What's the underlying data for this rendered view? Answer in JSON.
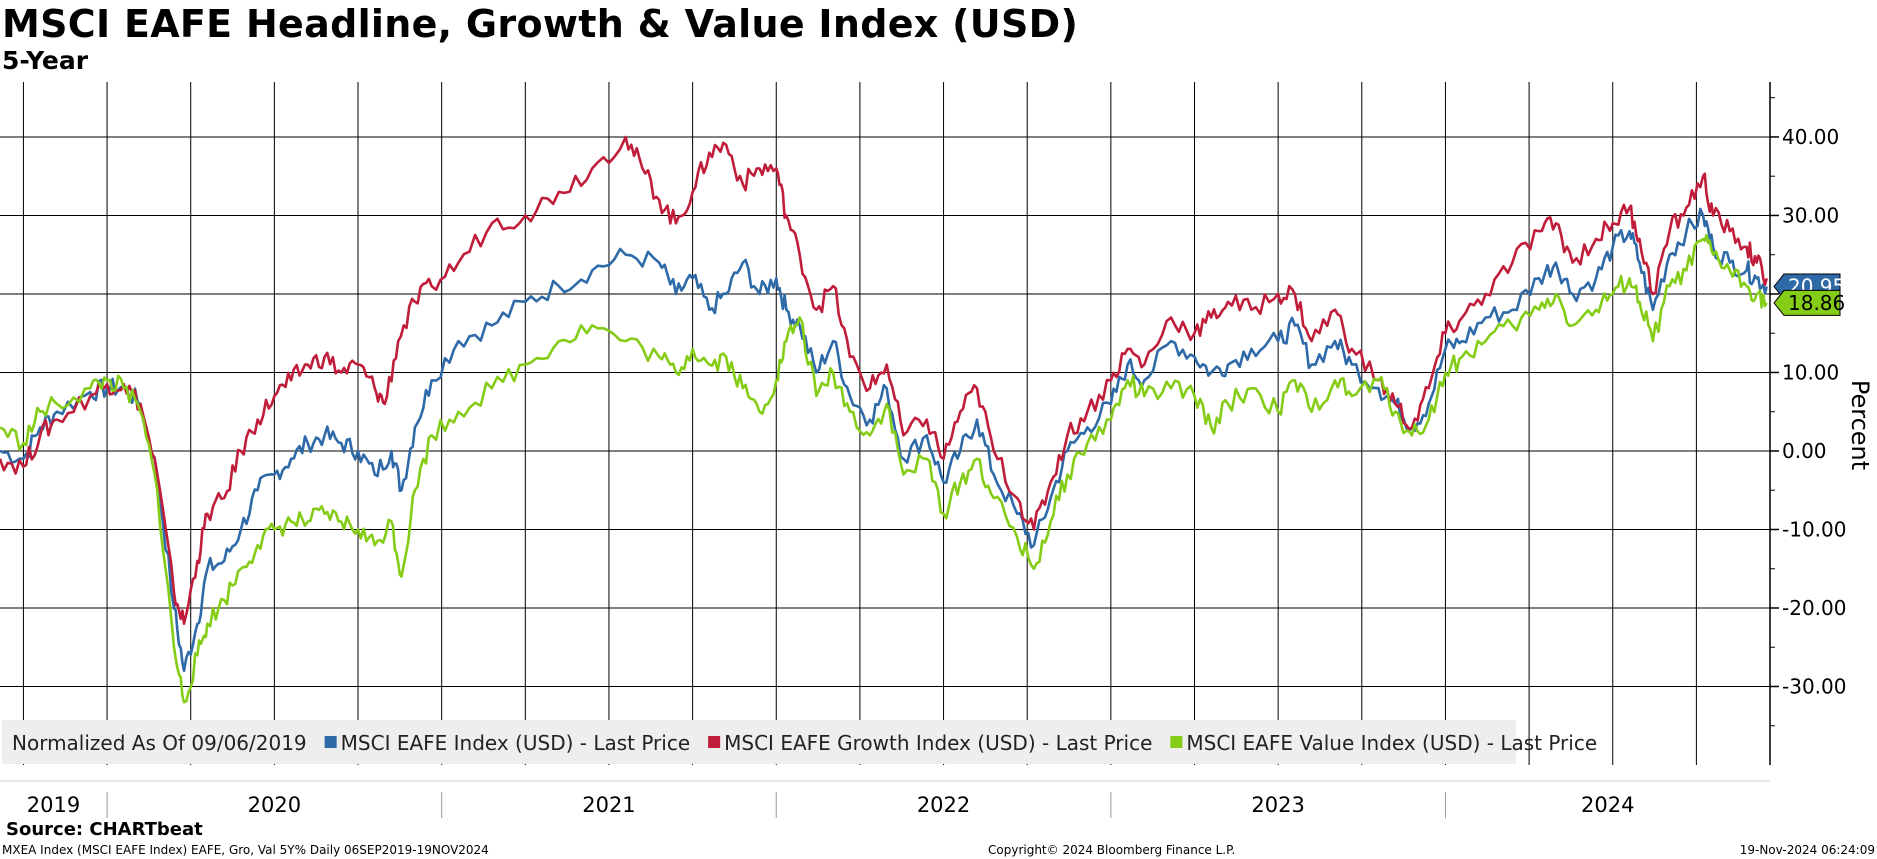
{
  "header": {
    "title": "MSCI EAFE Headline, Growth & Value Index (USD)",
    "subtitle": "5-Year"
  },
  "footer": {
    "source": "Source: CHARTbeat",
    "meta_left": "MXEA Index (MSCI EAFE Index) EAFE, Gro, Val 5Y%  Daily 06SEP2019-19NOV2024",
    "copyright": "Copyright© 2024 Bloomberg Finance L.P.",
    "timestamp": "19-Nov-2024 06:24:09"
  },
  "chart_data": {
    "type": "line",
    "title": "MSCI EAFE Headline, Growth & Value Index (USD)",
    "subtitle": "5-Year",
    "ylabel": "Percent",
    "xlabel": "",
    "ylim": [
      -40,
      47
    ],
    "yticks": [
      40,
      30,
      20,
      10,
      0,
      -10,
      -20,
      -30
    ],
    "ytick_labels": [
      "40.00",
      "30.00",
      "20.00",
      "10.00",
      "0.00",
      "-10.00",
      "-20.00",
      "-30.00"
    ],
    "x_range": [
      2019.68,
      2024.97
    ],
    "years": [
      "2019",
      "2020",
      "2021",
      "2022",
      "2023",
      "2024"
    ],
    "grid": true,
    "legend_position": "bottom-left",
    "legend_prefix": "Normalized As Of 09/06/2019",
    "last_value_tags": [
      {
        "series": "MSCI EAFE Index (USD) - Last Price",
        "label": "20.95"
      },
      {
        "series": "MSCI EAFE Value Index (USD) - Last Price",
        "label": "18.86"
      }
    ],
    "series": [
      {
        "name": "MSCI EAFE Index (USD) - Last Price",
        "color": "#2f6aa8",
        "points": [
          [
            2019.68,
            0
          ],
          [
            2019.75,
            -1
          ],
          [
            2019.8,
            3
          ],
          [
            2019.85,
            5
          ],
          [
            2019.95,
            7.5
          ],
          [
            2020.0,
            8
          ],
          [
            2020.05,
            8
          ],
          [
            2020.1,
            6
          ],
          [
            2020.15,
            -3
          ],
          [
            2020.2,
            -20
          ],
          [
            2020.23,
            -28
          ],
          [
            2020.27,
            -22
          ],
          [
            2020.3,
            -15
          ],
          [
            2020.35,
            -14
          ],
          [
            2020.4,
            -10
          ],
          [
            2020.45,
            -5
          ],
          [
            2020.5,
            -3
          ],
          [
            2020.55,
            -1
          ],
          [
            2020.6,
            1
          ],
          [
            2020.65,
            2
          ],
          [
            2020.7,
            1
          ],
          [
            2020.75,
            0
          ],
          [
            2020.8,
            -3
          ],
          [
            2020.85,
            0
          ],
          [
            2020.88,
            -5
          ],
          [
            2020.92,
            3
          ],
          [
            2020.97,
            9
          ],
          [
            2021.05,
            14
          ],
          [
            2021.15,
            16
          ],
          [
            2021.25,
            19
          ],
          [
            2021.35,
            21
          ],
          [
            2021.45,
            23
          ],
          [
            2021.55,
            25
          ],
          [
            2021.65,
            24
          ],
          [
            2021.7,
            20
          ],
          [
            2021.75,
            22
          ],
          [
            2021.8,
            18
          ],
          [
            2021.85,
            20
          ],
          [
            2021.9,
            24
          ],
          [
            2021.95,
            20
          ],
          [
            2022.0,
            22
          ],
          [
            2022.03,
            18
          ],
          [
            2022.07,
            16
          ],
          [
            2022.12,
            10
          ],
          [
            2022.17,
            14
          ],
          [
            2022.22,
            7
          ],
          [
            2022.28,
            4
          ],
          [
            2022.33,
            8
          ],
          [
            2022.38,
            -1
          ],
          [
            2022.45,
            2
          ],
          [
            2022.5,
            -4
          ],
          [
            2022.55,
            0
          ],
          [
            2022.6,
            4
          ],
          [
            2022.65,
            -3
          ],
          [
            2022.72,
            -8
          ],
          [
            2022.77,
            -12
          ],
          [
            2022.82,
            -6
          ],
          [
            2022.87,
            0
          ],
          [
            2022.93,
            3
          ],
          [
            2023.0,
            6
          ],
          [
            2023.05,
            11
          ],
          [
            2023.1,
            9
          ],
          [
            2023.18,
            14
          ],
          [
            2023.25,
            12
          ],
          [
            2023.3,
            10
          ],
          [
            2023.35,
            11
          ],
          [
            2023.42,
            13
          ],
          [
            2023.5,
            14
          ],
          [
            2023.55,
            16
          ],
          [
            2023.6,
            11
          ],
          [
            2023.67,
            14
          ],
          [
            2023.72,
            11
          ],
          [
            2023.8,
            8
          ],
          [
            2023.85,
            6
          ],
          [
            2023.9,
            3
          ],
          [
            2023.95,
            6
          ],
          [
            2024.0,
            13
          ],
          [
            2024.05,
            14
          ],
          [
            2024.12,
            17
          ],
          [
            2024.2,
            18
          ],
          [
            2024.28,
            22
          ],
          [
            2024.33,
            24
          ],
          [
            2024.38,
            20
          ],
          [
            2024.45,
            22
          ],
          [
            2024.5,
            26
          ],
          [
            2024.55,
            28
          ],
          [
            2024.58,
            24
          ],
          [
            2024.62,
            18
          ],
          [
            2024.67,
            25
          ],
          [
            2024.72,
            28
          ],
          [
            2024.77,
            30
          ],
          [
            2024.8,
            26
          ],
          [
            2024.85,
            24
          ],
          [
            2024.9,
            23
          ],
          [
            2024.93,
            22
          ],
          [
            2024.96,
            20.95
          ]
        ]
      },
      {
        "name": "MSCI EAFE Growth Index (USD) - Last Price",
        "color": "#c01d3a",
        "points": [
          [
            2019.68,
            -1
          ],
          [
            2019.75,
            -2
          ],
          [
            2019.8,
            2
          ],
          [
            2019.85,
            4
          ],
          [
            2019.95,
            7
          ],
          [
            2020.0,
            8.5
          ],
          [
            2020.05,
            8.5
          ],
          [
            2020.1,
            6
          ],
          [
            2020.15,
            -3
          ],
          [
            2020.2,
            -18
          ],
          [
            2020.23,
            -22
          ],
          [
            2020.27,
            -14
          ],
          [
            2020.3,
            -8
          ],
          [
            2020.35,
            -6
          ],
          [
            2020.4,
            0
          ],
          [
            2020.45,
            4
          ],
          [
            2020.5,
            7
          ],
          [
            2020.55,
            9
          ],
          [
            2020.6,
            11
          ],
          [
            2020.65,
            12
          ],
          [
            2020.7,
            10
          ],
          [
            2020.75,
            11
          ],
          [
            2020.8,
            8
          ],
          [
            2020.83,
            6
          ],
          [
            2020.87,
            14
          ],
          [
            2020.92,
            19
          ],
          [
            2020.97,
            21
          ],
          [
            2021.05,
            24
          ],
          [
            2021.15,
            29
          ],
          [
            2021.25,
            30
          ],
          [
            2021.35,
            33
          ],
          [
            2021.45,
            36
          ],
          [
            2021.55,
            40
          ],
          [
            2021.6,
            36
          ],
          [
            2021.65,
            32
          ],
          [
            2021.7,
            29
          ],
          [
            2021.75,
            33
          ],
          [
            2021.8,
            38
          ],
          [
            2021.85,
            39
          ],
          [
            2021.9,
            34
          ],
          [
            2021.95,
            36
          ],
          [
            2022.0,
            36
          ],
          [
            2022.03,
            30
          ],
          [
            2022.07,
            25
          ],
          [
            2022.12,
            18
          ],
          [
            2022.17,
            21
          ],
          [
            2022.22,
            12
          ],
          [
            2022.28,
            8
          ],
          [
            2022.33,
            11
          ],
          [
            2022.38,
            2
          ],
          [
            2022.45,
            4
          ],
          [
            2022.5,
            -1
          ],
          [
            2022.55,
            5
          ],
          [
            2022.6,
            8
          ],
          [
            2022.65,
            0
          ],
          [
            2022.72,
            -6
          ],
          [
            2022.77,
            -10
          ],
          [
            2022.82,
            -4
          ],
          [
            2022.87,
            2
          ],
          [
            2022.93,
            5
          ],
          [
            2023.0,
            9
          ],
          [
            2023.05,
            13
          ],
          [
            2023.1,
            11
          ],
          [
            2023.18,
            17
          ],
          [
            2023.25,
            15
          ],
          [
            2023.3,
            17
          ],
          [
            2023.35,
            19
          ],
          [
            2023.42,
            18
          ],
          [
            2023.5,
            20
          ],
          [
            2023.55,
            20
          ],
          [
            2023.6,
            14
          ],
          [
            2023.67,
            18
          ],
          [
            2023.72,
            13
          ],
          [
            2023.8,
            9
          ],
          [
            2023.85,
            6
          ],
          [
            2023.9,
            3
          ],
          [
            2023.95,
            8
          ],
          [
            2024.0,
            15
          ],
          [
            2024.05,
            17
          ],
          [
            2024.12,
            20
          ],
          [
            2024.2,
            24
          ],
          [
            2024.28,
            28
          ],
          [
            2024.33,
            29
          ],
          [
            2024.38,
            24
          ],
          [
            2024.45,
            27
          ],
          [
            2024.5,
            29
          ],
          [
            2024.55,
            31
          ],
          [
            2024.58,
            27
          ],
          [
            2024.62,
            20
          ],
          [
            2024.67,
            28
          ],
          [
            2024.72,
            31
          ],
          [
            2024.77,
            35
          ],
          [
            2024.8,
            30
          ],
          [
            2024.85,
            28
          ],
          [
            2024.9,
            26
          ],
          [
            2024.93,
            24
          ],
          [
            2024.96,
            22
          ]
        ]
      },
      {
        "name": "MSCI EAFE Value Index (USD) - Last Price",
        "color": "#84cc16",
        "points": [
          [
            2019.68,
            3
          ],
          [
            2019.75,
            1
          ],
          [
            2019.8,
            5
          ],
          [
            2019.85,
            6
          ],
          [
            2019.95,
            8
          ],
          [
            2020.0,
            9
          ],
          [
            2020.05,
            8
          ],
          [
            2020.1,
            5
          ],
          [
            2020.15,
            -5
          ],
          [
            2020.2,
            -25
          ],
          [
            2020.23,
            -32
          ],
          [
            2020.27,
            -26
          ],
          [
            2020.3,
            -22
          ],
          [
            2020.35,
            -19
          ],
          [
            2020.4,
            -15
          ],
          [
            2020.45,
            -12
          ],
          [
            2020.5,
            -10
          ],
          [
            2020.55,
            -9
          ],
          [
            2020.6,
            -9
          ],
          [
            2020.65,
            -8
          ],
          [
            2020.7,
            -9
          ],
          [
            2020.75,
            -10
          ],
          [
            2020.8,
            -12
          ],
          [
            2020.85,
            -9
          ],
          [
            2020.88,
            -16
          ],
          [
            2020.92,
            -5
          ],
          [
            2020.97,
            2
          ],
          [
            2021.05,
            5
          ],
          [
            2021.15,
            8
          ],
          [
            2021.25,
            11
          ],
          [
            2021.35,
            14
          ],
          [
            2021.45,
            16
          ],
          [
            2021.55,
            14
          ],
          [
            2021.65,
            12
          ],
          [
            2021.7,
            10
          ],
          [
            2021.75,
            13
          ],
          [
            2021.8,
            11
          ],
          [
            2021.85,
            12
          ],
          [
            2021.9,
            8
          ],
          [
            2021.95,
            5
          ],
          [
            2022.0,
            9
          ],
          [
            2022.03,
            14
          ],
          [
            2022.07,
            17
          ],
          [
            2022.12,
            7
          ],
          [
            2022.17,
            10
          ],
          [
            2022.22,
            5
          ],
          [
            2022.28,
            2
          ],
          [
            2022.33,
            6
          ],
          [
            2022.38,
            -3
          ],
          [
            2022.45,
            -1
          ],
          [
            2022.5,
            -8
          ],
          [
            2022.55,
            -4
          ],
          [
            2022.6,
            -1
          ],
          [
            2022.65,
            -6
          ],
          [
            2022.72,
            -11
          ],
          [
            2022.77,
            -15
          ],
          [
            2022.82,
            -9
          ],
          [
            2022.87,
            -3
          ],
          [
            2022.93,
            1
          ],
          [
            2023.0,
            4
          ],
          [
            2023.05,
            9
          ],
          [
            2023.1,
            7
          ],
          [
            2023.18,
            8
          ],
          [
            2023.25,
            7
          ],
          [
            2023.3,
            3
          ],
          [
            2023.35,
            6
          ],
          [
            2023.42,
            8
          ],
          [
            2023.5,
            5
          ],
          [
            2023.55,
            9
          ],
          [
            2023.6,
            5
          ],
          [
            2023.67,
            9
          ],
          [
            2023.72,
            7
          ],
          [
            2023.8,
            9
          ],
          [
            2023.85,
            5
          ],
          [
            2023.9,
            2
          ],
          [
            2023.95,
            4
          ],
          [
            2024.0,
            10
          ],
          [
            2024.05,
            12
          ],
          [
            2024.12,
            14
          ],
          [
            2024.2,
            16
          ],
          [
            2024.28,
            18
          ],
          [
            2024.33,
            20
          ],
          [
            2024.38,
            16
          ],
          [
            2024.45,
            18
          ],
          [
            2024.5,
            20
          ],
          [
            2024.55,
            22
          ],
          [
            2024.58,
            19
          ],
          [
            2024.62,
            14
          ],
          [
            2024.67,
            21
          ],
          [
            2024.72,
            23
          ],
          [
            2024.77,
            27
          ],
          [
            2024.8,
            25
          ],
          [
            2024.85,
            23
          ],
          [
            2024.9,
            21
          ],
          [
            2024.93,
            20
          ],
          [
            2024.96,
            18.86
          ]
        ]
      }
    ]
  }
}
